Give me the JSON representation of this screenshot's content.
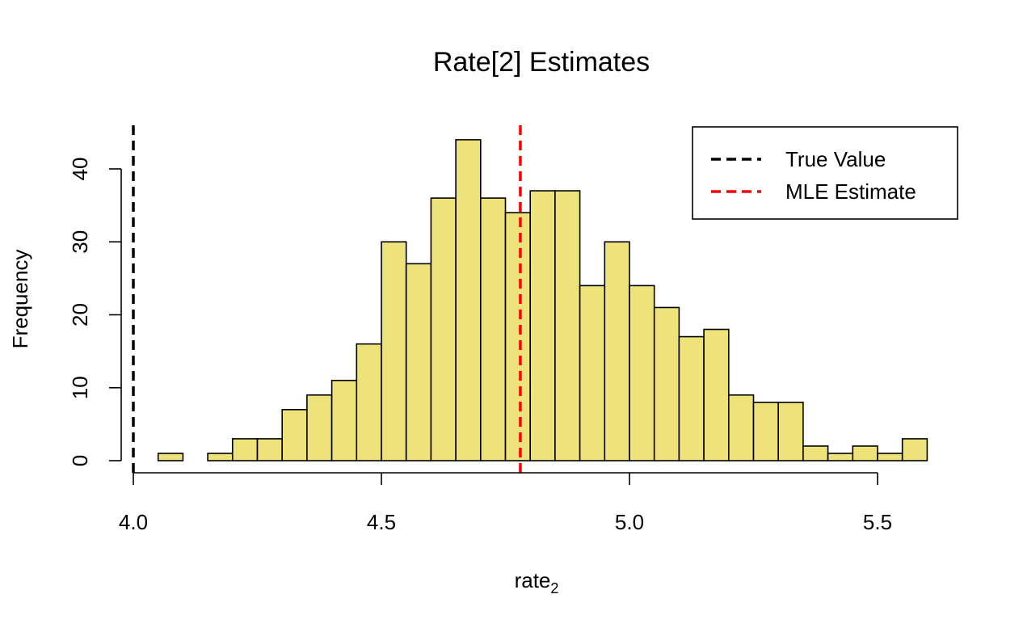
{
  "chart_data": {
    "type": "bar",
    "title": "Rate[2] Estimates",
    "xlabel": "rate",
    "xlabel_subscript": "2",
    "ylabel": "Frequency",
    "xlim": [
      4.0,
      5.6
    ],
    "ylim": [
      0,
      46
    ],
    "x_ticks": [
      {
        "value": 4.0,
        "label": "4.0"
      },
      {
        "value": 4.5,
        "label": "4.5"
      },
      {
        "value": 5.0,
        "label": "5.0"
      },
      {
        "value": 5.5,
        "label": "5.5"
      }
    ],
    "y_ticks": [
      {
        "value": 0,
        "label": "0"
      },
      {
        "value": 10,
        "label": "10"
      },
      {
        "value": 20,
        "label": "20"
      },
      {
        "value": 30,
        "label": "30"
      },
      {
        "value": 40,
        "label": "40"
      }
    ],
    "bin_edges": [
      4.05,
      4.1,
      4.15,
      4.2,
      4.25,
      4.3,
      4.35,
      4.4,
      4.45,
      4.5,
      4.55,
      4.6,
      4.65,
      4.7,
      4.75,
      4.8,
      4.85,
      4.9,
      4.95,
      5.0,
      5.05,
      5.1,
      5.15,
      5.2,
      5.25,
      5.3,
      5.35,
      5.4,
      5.45,
      5.5,
      5.55,
      5.6
    ],
    "values": [
      1,
      0,
      1,
      3,
      3,
      7,
      9,
      11,
      16,
      30,
      27,
      36,
      44,
      36,
      34,
      37,
      37,
      24,
      30,
      24,
      21,
      17,
      18,
      9,
      8,
      8,
      2,
      1,
      2,
      1,
      3
    ],
    "bar_fill": "#eee27a",
    "bar_stroke": "#000000",
    "reference_lines": [
      {
        "name": "True Value",
        "x": 4.0,
        "color": "#000000",
        "style": "dashed"
      },
      {
        "name": "MLE Estimate",
        "x": 4.78,
        "color": "#ff0000",
        "style": "dashed"
      }
    ],
    "legend_position": "top-right",
    "grid": false
  }
}
